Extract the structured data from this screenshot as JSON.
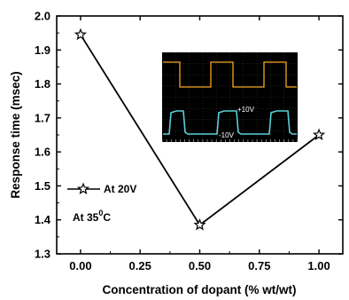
{
  "chart_data": {
    "type": "line",
    "xlabel": "Concentration of dopant (% wt/wt)",
    "ylabel": "Response time (msec)",
    "xlim": [
      -0.1,
      1.1
    ],
    "ylim": [
      1.3,
      2.0
    ],
    "x_ticks": [
      "0.00",
      "0.25",
      "0.50",
      "0.75",
      "1.00"
    ],
    "y_ticks": [
      "1.3",
      "1.4",
      "1.5",
      "1.6",
      "1.7",
      "1.8",
      "1.9",
      "2.0"
    ],
    "series": [
      {
        "name": "At 20V",
        "marker": "star",
        "color": "#000000",
        "x": [
          0.0,
          0.5,
          1.0
        ],
        "y": [
          1.945,
          1.385,
          1.65
        ]
      }
    ],
    "legend_position": "middle-left",
    "annotation": {
      "prefix": "At 35",
      "superscript": "0",
      "suffix": "C"
    },
    "inset": {
      "type": "oscilloscope-waveform",
      "background": "#000000",
      "top_trace_color": "#f5a623",
      "bottom_trace_color": "#5ad0d8",
      "labels": [
        "+10V",
        "-10V"
      ]
    }
  }
}
